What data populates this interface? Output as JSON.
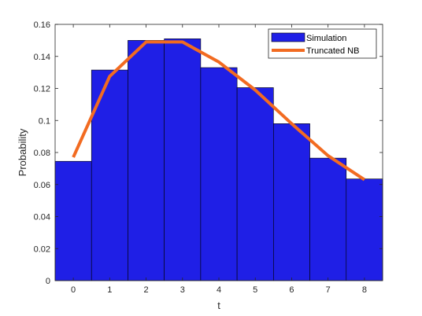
{
  "chart_data": {
    "type": "bar",
    "title": "",
    "xlabel": "t",
    "ylabel": "Probability",
    "xlim": [
      -0.5,
      8.5
    ],
    "ylim": [
      0,
      0.16
    ],
    "x": [
      0,
      1,
      2,
      3,
      4,
      5,
      6,
      7,
      8
    ],
    "x_ticks": [
      "0",
      "1",
      "2",
      "3",
      "4",
      "5",
      "6",
      "7",
      "8"
    ],
    "y_ticks": [
      "0",
      "0.02",
      "0.04",
      "0.06",
      "0.08",
      "0.1",
      "0.12",
      "0.14",
      "0.16"
    ],
    "grid": false,
    "legend_position": "top-right",
    "series": [
      {
        "name": "Simulation",
        "kind": "bar",
        "color": "#1f1fe6",
        "values": [
          0.0745,
          0.1315,
          0.15,
          0.151,
          0.133,
          0.1205,
          0.098,
          0.0765,
          0.0635
        ]
      },
      {
        "name": "Truncated NB",
        "kind": "line",
        "color": "#f26b21",
        "x": [
          0,
          1,
          2,
          2.55,
          3,
          4,
          5,
          6,
          7,
          8
        ],
        "values": [
          0.077,
          0.1275,
          0.149,
          0.149,
          0.149,
          0.1365,
          0.119,
          0.098,
          0.078,
          0.063
        ]
      }
    ]
  }
}
